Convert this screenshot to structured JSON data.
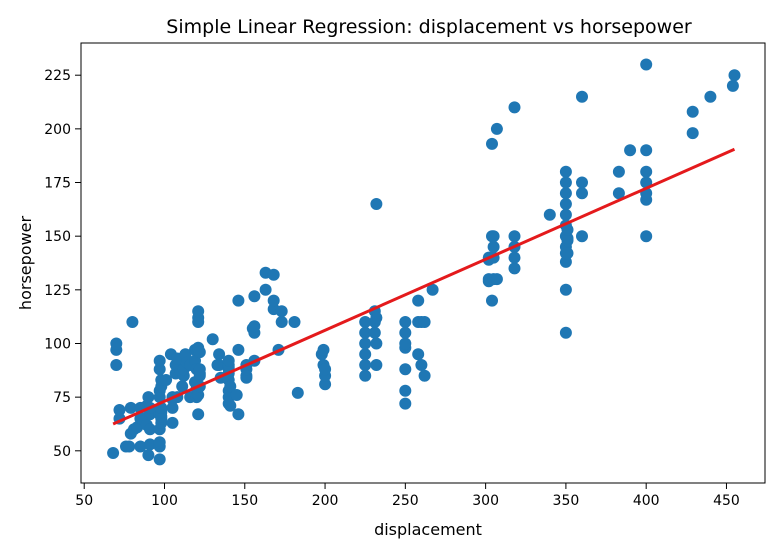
{
  "chart_data": {
    "type": "scatter",
    "title": "Simple Linear Regression: displacement vs horsepower",
    "xlabel": "displacement",
    "ylabel": "horsepower",
    "xlim": [
      48,
      474
    ],
    "ylim": [
      35,
      240
    ],
    "xticks": [
      50,
      100,
      150,
      200,
      250,
      300,
      350,
      400,
      450
    ],
    "yticks": [
      50,
      75,
      100,
      125,
      150,
      175,
      200,
      225
    ],
    "grid": false,
    "colors": {
      "points": "#1f77b4",
      "line": "#e41a1c"
    },
    "regression_line": {
      "x": [
        68,
        455
      ],
      "y": [
        62.5,
        190.5
      ]
    },
    "points": [
      [
        68,
        49
      ],
      [
        70,
        97
      ],
      [
        70,
        100
      ],
      [
        70,
        90
      ],
      [
        72,
        65
      ],
      [
        72,
        69
      ],
      [
        76,
        52
      ],
      [
        78,
        52
      ],
      [
        79,
        58
      ],
      [
        79,
        70
      ],
      [
        80,
        110
      ],
      [
        81,
        60
      ],
      [
        83,
        61
      ],
      [
        85,
        52
      ],
      [
        85,
        65
      ],
      [
        85,
        70
      ],
      [
        86,
        65
      ],
      [
        89,
        62
      ],
      [
        89,
        71
      ],
      [
        90,
        48
      ],
      [
        90,
        70
      ],
      [
        90,
        75
      ],
      [
        91,
        53
      ],
      [
        91,
        60
      ],
      [
        91,
        67
      ],
      [
        91,
        68
      ],
      [
        91,
        70
      ],
      [
        97,
        46
      ],
      [
        97,
        52
      ],
      [
        97,
        54
      ],
      [
        97,
        60
      ],
      [
        97,
        67
      ],
      [
        97,
        75
      ],
      [
        97,
        78
      ],
      [
        97,
        88
      ],
      [
        98,
        63
      ],
      [
        98,
        65
      ],
      [
        98,
        66
      ],
      [
        98,
        68
      ],
      [
        98,
        70
      ],
      [
        98,
        80
      ],
      [
        98,
        83
      ],
      [
        97,
        92
      ],
      [
        101,
        83
      ],
      [
        104,
        95
      ],
      [
        105,
        63
      ],
      [
        105,
        70
      ],
      [
        105,
        74
      ],
      [
        105,
        75
      ],
      [
        107,
        86
      ],
      [
        107,
        90
      ],
      [
        108,
        75
      ],
      [
        108,
        93
      ],
      [
        110,
        87
      ],
      [
        111,
        80
      ],
      [
        112,
        85
      ],
      [
        112,
        88
      ],
      [
        113,
        95
      ],
      [
        114,
        91
      ],
      [
        116,
        75
      ],
      [
        116,
        90
      ],
      [
        119,
        82
      ],
      [
        119,
        92
      ],
      [
        119,
        97
      ],
      [
        120,
        75
      ],
      [
        120,
        79
      ],
      [
        120,
        88
      ],
      [
        120,
        97
      ],
      [
        121,
        67
      ],
      [
        121,
        76
      ],
      [
        121,
        98
      ],
      [
        121,
        110
      ],
      [
        121,
        112
      ],
      [
        121,
        115
      ],
      [
        122,
        80
      ],
      [
        122,
        85
      ],
      [
        122,
        86
      ],
      [
        122,
        88
      ],
      [
        122,
        96
      ],
      [
        130,
        102
      ],
      [
        133,
        90
      ],
      [
        134,
        90
      ],
      [
        134,
        95
      ],
      [
        135,
        84
      ],
      [
        140,
        72
      ],
      [
        140,
        75
      ],
      [
        140,
        78
      ],
      [
        140,
        83
      ],
      [
        140,
        86
      ],
      [
        140,
        88
      ],
      [
        140,
        89
      ],
      [
        140,
        90
      ],
      [
        140,
        92
      ],
      [
        141,
        71
      ],
      [
        141,
        80
      ],
      [
        145,
        76
      ],
      [
        146,
        67
      ],
      [
        146,
        97
      ],
      [
        146,
        120
      ],
      [
        151,
        84
      ],
      [
        151,
        85
      ],
      [
        151,
        88
      ],
      [
        151,
        90
      ],
      [
        155,
        107
      ],
      [
        156,
        92
      ],
      [
        156,
        105
      ],
      [
        156,
        108
      ],
      [
        156,
        122
      ],
      [
        163,
        125
      ],
      [
        163,
        133
      ],
      [
        168,
        116
      ],
      [
        168,
        120
      ],
      [
        168,
        132
      ],
      [
        171,
        97
      ],
      [
        173,
        110
      ],
      [
        173,
        115
      ],
      [
        181,
        110
      ],
      [
        183,
        77
      ],
      [
        198,
        95
      ],
      [
        199,
        90
      ],
      [
        199,
        97
      ],
      [
        200,
        81
      ],
      [
        200,
        85
      ],
      [
        200,
        88
      ],
      [
        225,
        85
      ],
      [
        225,
        90
      ],
      [
        225,
        95
      ],
      [
        225,
        100
      ],
      [
        225,
        105
      ],
      [
        225,
        110
      ],
      [
        231,
        105
      ],
      [
        231,
        110
      ],
      [
        231,
        115
      ],
      [
        232,
        90
      ],
      [
        232,
        100
      ],
      [
        232,
        112
      ],
      [
        232,
        165
      ],
      [
        250,
        72
      ],
      [
        250,
        78
      ],
      [
        250,
        88
      ],
      [
        250,
        98
      ],
      [
        250,
        100
      ],
      [
        250,
        105
      ],
      [
        250,
        110
      ],
      [
        258,
        95
      ],
      [
        258,
        110
      ],
      [
        258,
        120
      ],
      [
        260,
        90
      ],
      [
        260,
        110
      ],
      [
        262,
        85
      ],
      [
        262,
        110
      ],
      [
        267,
        125
      ],
      [
        302,
        129
      ],
      [
        302,
        130
      ],
      [
        302,
        139
      ],
      [
        302,
        140
      ],
      [
        304,
        120
      ],
      [
        304,
        150
      ],
      [
        304,
        193
      ],
      [
        305,
        130
      ],
      [
        305,
        140
      ],
      [
        305,
        145
      ],
      [
        305,
        150
      ],
      [
        307,
        130
      ],
      [
        307,
        200
      ],
      [
        318,
        135
      ],
      [
        318,
        140
      ],
      [
        318,
        145
      ],
      [
        318,
        150
      ],
      [
        318,
        210
      ],
      [
        340,
        160
      ],
      [
        350,
        105
      ],
      [
        350,
        125
      ],
      [
        350,
        138
      ],
      [
        350,
        142
      ],
      [
        350,
        145
      ],
      [
        350,
        150
      ],
      [
        350,
        155
      ],
      [
        350,
        160
      ],
      [
        350,
        165
      ],
      [
        350,
        170
      ],
      [
        350,
        175
      ],
      [
        350,
        180
      ],
      [
        351,
        142
      ],
      [
        351,
        148
      ],
      [
        351,
        149
      ],
      [
        351,
        153
      ],
      [
        360,
        150
      ],
      [
        360,
        170
      ],
      [
        360,
        175
      ],
      [
        360,
        215
      ],
      [
        383,
        170
      ],
      [
        383,
        180
      ],
      [
        390,
        190
      ],
      [
        400,
        150
      ],
      [
        400,
        167
      ],
      [
        400,
        170
      ],
      [
        400,
        175
      ],
      [
        400,
        180
      ],
      [
        400,
        190
      ],
      [
        400,
        230
      ],
      [
        429,
        198
      ],
      [
        429,
        208
      ],
      [
        440,
        215
      ],
      [
        454,
        220
      ],
      [
        455,
        225
      ]
    ]
  }
}
